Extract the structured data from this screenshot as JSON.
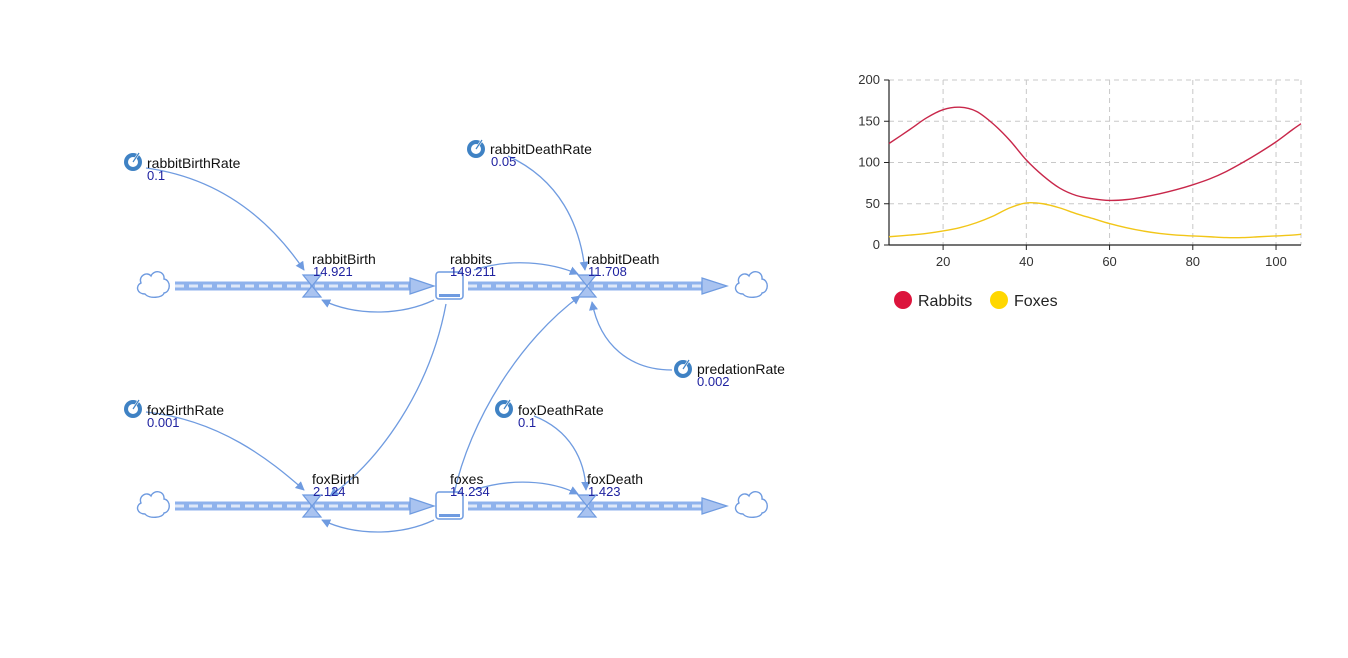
{
  "model": {
    "stocks": [
      {
        "id": "rabbits",
        "label": "rabbits",
        "value": "149.211"
      },
      {
        "id": "foxes",
        "label": "foxes",
        "value": "14.234"
      }
    ],
    "flows": [
      {
        "id": "rabbitBirth",
        "label": "rabbitBirth",
        "value": "14.921"
      },
      {
        "id": "rabbitDeath",
        "label": "rabbitDeath",
        "value": "11.708"
      },
      {
        "id": "foxBirth",
        "label": "foxBirth",
        "value": "2.124"
      },
      {
        "id": "foxDeath",
        "label": "foxDeath",
        "value": "1.423"
      }
    ],
    "variables": [
      {
        "id": "rabbitBirthRate",
        "label": "rabbitBirthRate",
        "value": "0.1"
      },
      {
        "id": "rabbitDeathRate",
        "label": "rabbitDeathRate",
        "value": "0.05"
      },
      {
        "id": "predationRate",
        "label": "predationRate",
        "value": "0.002"
      },
      {
        "id": "foxBirthRate",
        "label": "foxBirthRate",
        "value": "0.001"
      },
      {
        "id": "foxDeathRate",
        "label": "foxDeathRate",
        "value": "0.1"
      }
    ],
    "icons": {
      "variable": "variable-gauge-icon",
      "cloud": "cloud-icon",
      "valve": "flow-valve-icon",
      "stock": "stock-icon"
    },
    "colors": {
      "pipe": "#8fb2ec",
      "link": "#6f9be0",
      "value_text": "#1f22a0"
    }
  },
  "chart_data": {
    "type": "line",
    "xlim": [
      7,
      106
    ],
    "ylim": [
      0,
      200
    ],
    "x_ticks": [
      20,
      40,
      60,
      80,
      100
    ],
    "y_ticks": [
      0,
      50,
      100,
      150,
      200
    ],
    "grid": true,
    "legend_placement": "bottom-left",
    "series": [
      {
        "name": "Rabbits",
        "color": "#c8274a",
        "legend_color": "#dc143c",
        "x": [
          7,
          12,
          16,
          20,
          24,
          28,
          32,
          36,
          40,
          44,
          48,
          52,
          56,
          60,
          64,
          68,
          72,
          76,
          80,
          84,
          88,
          92,
          96,
          100,
          104,
          106
        ],
        "y": [
          123,
          140,
          154,
          164,
          167,
          162,
          147,
          127,
          103,
          84,
          69,
          60,
          56,
          54,
          55,
          58,
          62,
          67,
          73,
          80,
          89,
          100,
          112,
          125,
          140,
          147
        ]
      },
      {
        "name": "Foxes",
        "color": "#f2c618",
        "legend_color": "#ffd700",
        "x": [
          7,
          12,
          16,
          20,
          24,
          28,
          32,
          36,
          40,
          44,
          48,
          52,
          56,
          60,
          64,
          68,
          72,
          76,
          80,
          84,
          88,
          92,
          96,
          100,
          104,
          106
        ],
        "y": [
          10,
          12,
          14,
          17,
          21,
          27,
          35,
          45,
          51,
          50,
          45,
          38,
          32,
          26,
          21,
          17,
          14,
          12,
          11,
          10,
          9,
          9,
          10,
          11,
          12,
          13
        ]
      }
    ]
  }
}
